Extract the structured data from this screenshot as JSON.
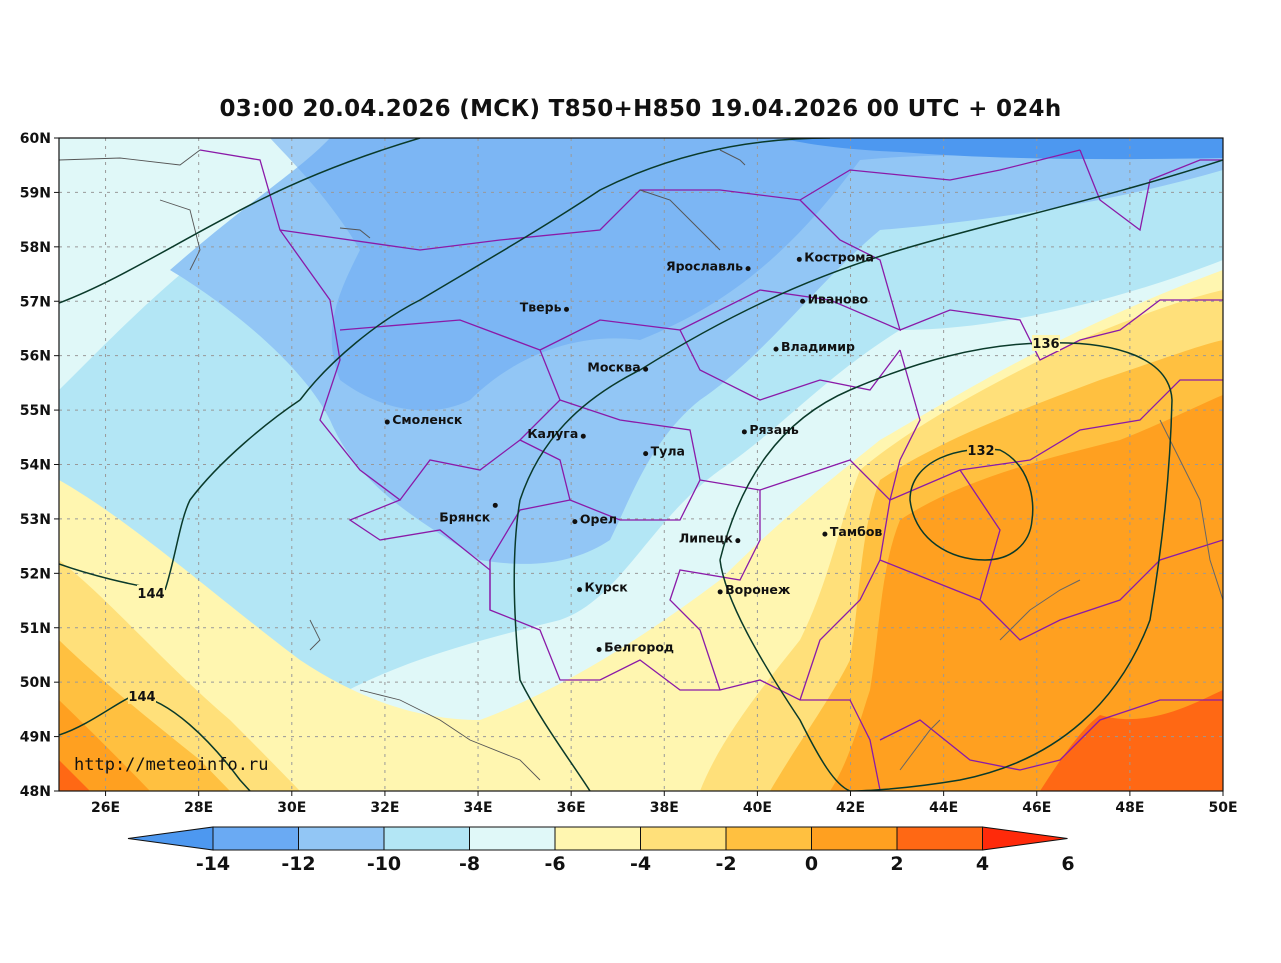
{
  "title": "03:00 20.04.2026 (МСК) T850+H850 19.04.2026 00 UTC + 024h",
  "watermark": "http://meteoinfo.ru",
  "lat_labels": [
    "60N",
    "59N",
    "58N",
    "57N",
    "56N",
    "55N",
    "54N",
    "53N",
    "52N",
    "51N",
    "50N",
    "49N",
    "48N"
  ],
  "lon_labels": [
    "26E",
    "28E",
    "30E",
    "32E",
    "34E",
    "36E",
    "38E",
    "40E",
    "42E",
    "44E",
    "46E",
    "48E",
    "50E"
  ],
  "colorbar": {
    "labels": [
      "-14",
      "-12",
      "-10",
      "-8",
      "-6",
      "-4",
      "-2",
      "0",
      "2",
      "4",
      "6"
    ],
    "colors": [
      "#4d98f0",
      "#6aaaf3",
      "#92c6f5",
      "#b3e6f5",
      "#e0f8f8",
      "#fff6b0",
      "#ffe07a",
      "#ffc040",
      "#ffa020",
      "#ff6814",
      "#ff2a0a"
    ]
  },
  "contour_labels": [
    "136",
    "132",
    "144",
    "144"
  ],
  "cities": [
    {
      "name": "Ярославль",
      "lon": 39.8,
      "lat": 57.6
    },
    {
      "name": "Кострома",
      "lon": 40.9,
      "lat": 57.77
    },
    {
      "name": "Иваново",
      "lon": 40.97,
      "lat": 57.0
    },
    {
      "name": "Тверь",
      "lon": 35.9,
      "lat": 56.85
    },
    {
      "name": "Владимир",
      "lon": 40.4,
      "lat": 56.12
    },
    {
      "name": "Москва",
      "lon": 37.6,
      "lat": 55.75
    },
    {
      "name": "Смоленск",
      "lon": 32.05,
      "lat": 54.78
    },
    {
      "name": "Рязань",
      "lon": 39.72,
      "lat": 54.6
    },
    {
      "name": "Калуга",
      "lon": 36.26,
      "lat": 54.52
    },
    {
      "name": "Тула",
      "lon": 37.6,
      "lat": 54.2
    },
    {
      "name": "Брянск",
      "lon": 34.37,
      "lat": 53.25
    },
    {
      "name": "Орел",
      "lon": 36.08,
      "lat": 52.95
    },
    {
      "name": "Тамбов",
      "lon": 41.45,
      "lat": 52.72
    },
    {
      "name": "Липецк",
      "lon": 39.58,
      "lat": 52.6
    },
    {
      "name": "Курск",
      "lon": 36.18,
      "lat": 51.7
    },
    {
      "name": "Воронеж",
      "lon": 39.2,
      "lat": 51.66
    },
    {
      "name": "Белгород",
      "lon": 36.6,
      "lat": 50.6
    }
  ]
}
